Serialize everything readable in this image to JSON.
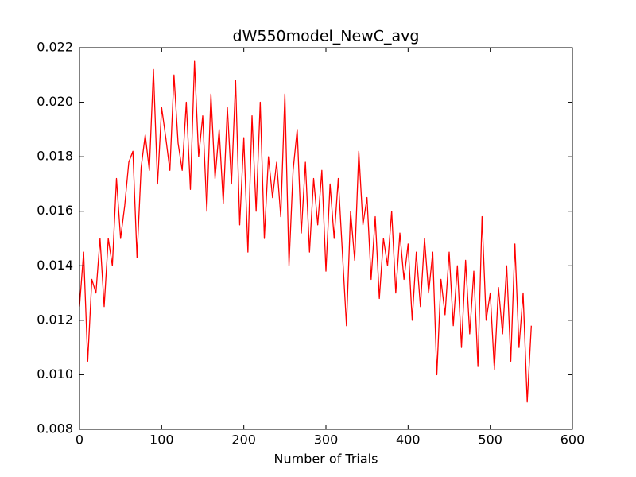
{
  "chart_data": {
    "type": "line",
    "title": "dW550model_NewC_avg",
    "xlabel": "Number of Trials",
    "x": [
      0,
      5,
      10,
      15,
      20,
      25,
      30,
      35,
      40,
      45,
      50,
      55,
      60,
      65,
      70,
      75,
      80,
      85,
      90,
      95,
      100,
      105,
      110,
      115,
      120,
      125,
      130,
      135,
      140,
      145,
      150,
      155,
      160,
      165,
      170,
      175,
      180,
      185,
      190,
      195,
      200,
      205,
      210,
      215,
      220,
      225,
      230,
      235,
      240,
      245,
      250,
      255,
      260,
      265,
      270,
      275,
      280,
      285,
      290,
      295,
      300,
      305,
      310,
      315,
      320,
      325,
      330,
      335,
      340,
      345,
      350,
      355,
      360,
      365,
      370,
      375,
      380,
      385,
      390,
      395,
      400,
      405,
      410,
      415,
      420,
      425,
      430,
      435,
      440,
      445,
      450,
      455,
      460,
      465,
      470,
      475,
      480,
      485,
      490,
      495,
      500,
      505,
      510,
      515,
      520,
      525,
      530,
      535,
      540,
      545,
      550
    ],
    "series": [
      {
        "color": "#ff0000",
        "values": [
          0.0125,
          0.0145,
          0.0105,
          0.0135,
          0.013,
          0.015,
          0.0125,
          0.015,
          0.014,
          0.0172,
          0.015,
          0.0162,
          0.0178,
          0.0182,
          0.0143,
          0.0176,
          0.0188,
          0.0175,
          0.0212,
          0.017,
          0.0198,
          0.0187,
          0.0175,
          0.021,
          0.0185,
          0.0175,
          0.02,
          0.0168,
          0.0215,
          0.018,
          0.0195,
          0.016,
          0.0203,
          0.0172,
          0.019,
          0.0163,
          0.0198,
          0.017,
          0.0208,
          0.0155,
          0.0187,
          0.0145,
          0.0195,
          0.016,
          0.02,
          0.015,
          0.018,
          0.0165,
          0.0178,
          0.0158,
          0.0203,
          0.014,
          0.0175,
          0.019,
          0.0152,
          0.0178,
          0.0145,
          0.0172,
          0.0155,
          0.0175,
          0.0138,
          0.017,
          0.015,
          0.0172,
          0.0145,
          0.0118,
          0.016,
          0.0142,
          0.0182,
          0.0155,
          0.0165,
          0.0135,
          0.0158,
          0.0128,
          0.015,
          0.014,
          0.016,
          0.013,
          0.0152,
          0.0135,
          0.0148,
          0.012,
          0.0145,
          0.0125,
          0.015,
          0.013,
          0.0145,
          0.01,
          0.0135,
          0.0122,
          0.0145,
          0.0118,
          0.014,
          0.011,
          0.0142,
          0.0115,
          0.0138,
          0.0103,
          0.0158,
          0.012,
          0.013,
          0.0102,
          0.0132,
          0.0115,
          0.014,
          0.0105,
          0.0148,
          0.011,
          0.013,
          0.009,
          0.0118
        ]
      }
    ],
    "xlim": [
      0,
      600
    ],
    "xticks": [
      0,
      100,
      200,
      300,
      400,
      500,
      600
    ],
    "ylim": [
      0.008,
      0.022
    ],
    "yticks": [
      0.008,
      {
        "value": 0.01,
        "label": "0.010"
      },
      0.012,
      0.014,
      0.016,
      0.018,
      {
        "value": 0.02,
        "label": "0.020"
      },
      0.022
    ]
  }
}
